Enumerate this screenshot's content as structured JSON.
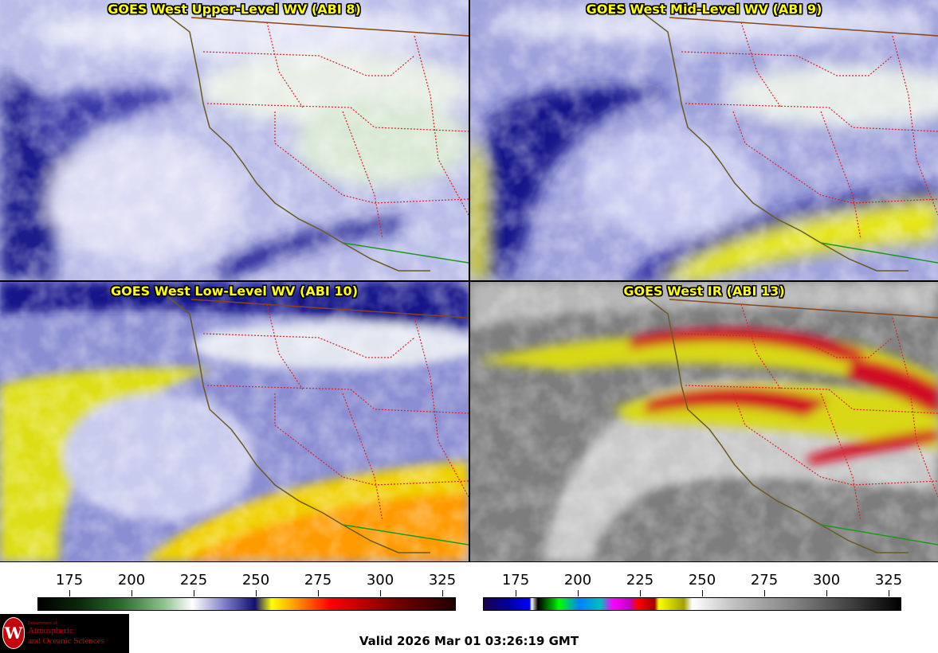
{
  "panels": {
    "upper_wv": {
      "title": "GOES West Upper-Level WV (ABI 8)"
    },
    "mid_wv": {
      "title": "GOES West Mid-Level WV (ABI 9)"
    },
    "low_wv": {
      "title": "GOES West Low-Level WV (ABI 10)"
    },
    "ir": {
      "title": "GOES West IR (ABI 13)"
    }
  },
  "colorbars": {
    "wv": {
      "ticks": [
        "175",
        "200",
        "225",
        "250",
        "275",
        "300",
        "325"
      ]
    },
    "ir": {
      "ticks": [
        "175",
        "200",
        "225",
        "250",
        "275",
        "300",
        "325"
      ]
    }
  },
  "footer": {
    "valid_time": "Valid 2026 Mar 01 03:26:19 GMT",
    "logo": {
      "department": "Department of",
      "line1": "Atmospheric",
      "line2": "and Oceanic Sciences",
      "seal_letter": "W"
    }
  },
  "colors": {
    "state_border": "#e02020",
    "coastline": "#6b5a1e",
    "country_border": "#8b4513",
    "mexico_border": "#1a9a1a",
    "title_text": "#ffff00"
  }
}
